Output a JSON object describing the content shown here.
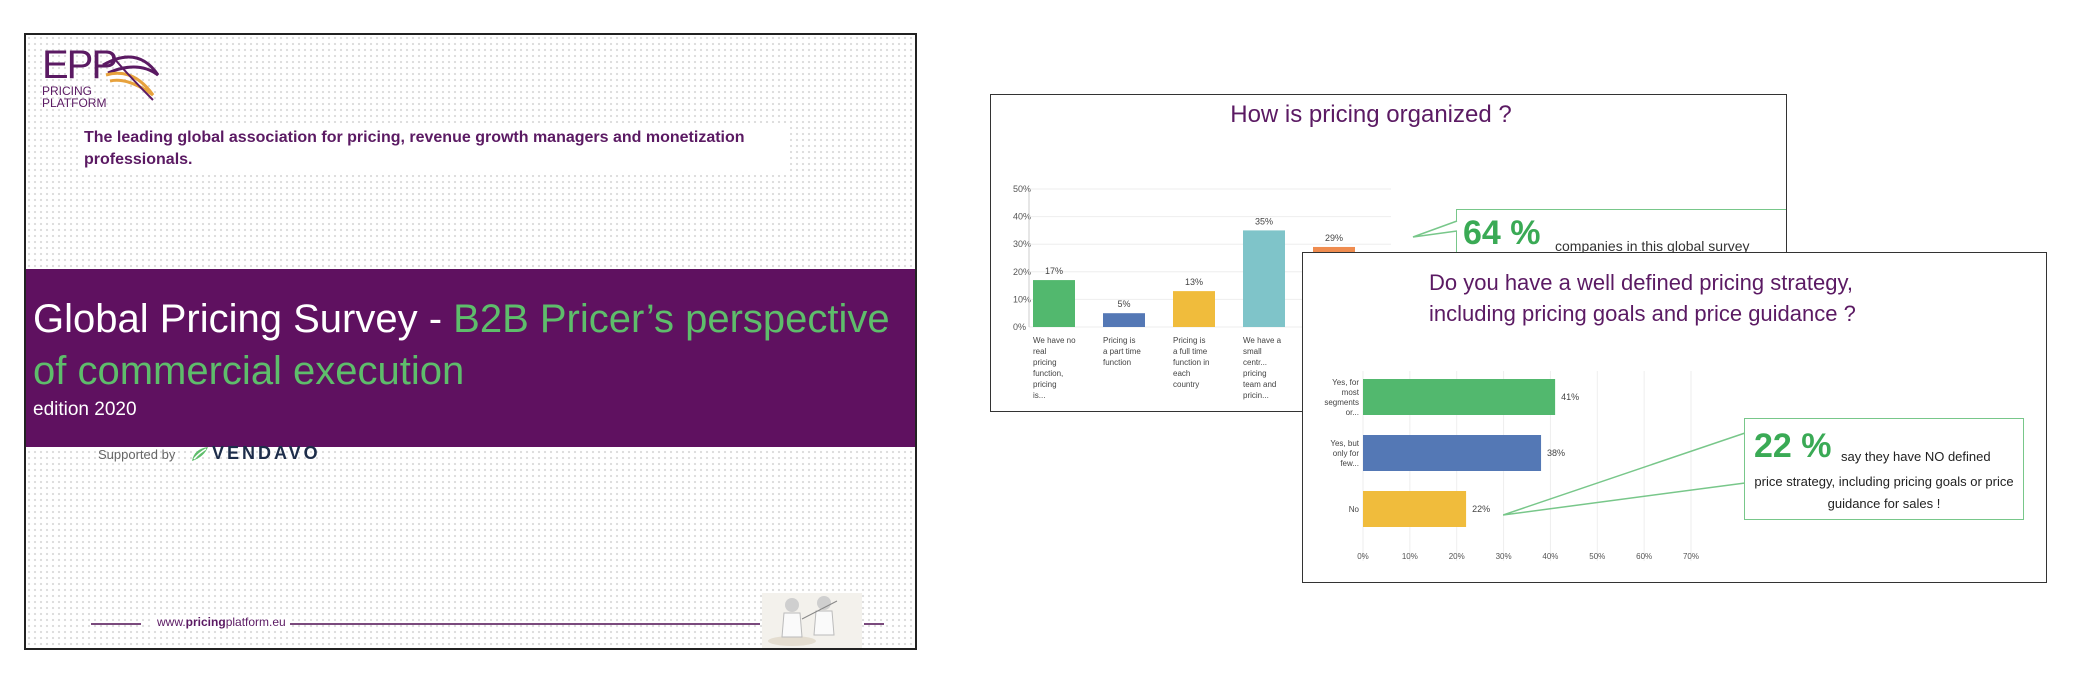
{
  "slide1": {
    "logo_text": "EPP",
    "logo_sub_line1": "PRICING",
    "logo_sub_line2": "PLATFORM",
    "tagline": "The leading global association for pricing, revenue growth managers and monetization professionals.",
    "title_main": "Global Pricing Survey - ",
    "title_accent": "B2B Pricer’s perspective of commercial execution",
    "edition": "edition 2020",
    "supported_by": "Supported by",
    "sponsor": "VENDAVO",
    "url_prefix": "www.",
    "url_bold": "pricing",
    "url_suffix": "platform.eu",
    "colors": {
      "band": "#5f1160",
      "accent": "#5ebd6b",
      "brand": "#5b1a63"
    }
  },
  "slide2": {
    "title": "How is pricing organized ?",
    "callout_big": "64 %",
    "callout_text": "companies in this global survey"
  },
  "slide3": {
    "title_line1": "Do you have a well defined pricing strategy,",
    "title_line2": "including pricing goals and price guidance ?",
    "callout_big": "22 %",
    "callout_text_inline": "say they have NO defined",
    "callout_text_rest": "price strategy, including pricing goals or price guidance for sales !"
  },
  "chart_data": [
    {
      "type": "bar",
      "title": "How is pricing organized ?",
      "categories": [
        "We have no real pricing function, pricing is...",
        "Pricing is a part time function",
        "Pricing is a full time function in each country",
        "We have a small centr... pricing team and pricin...",
        ""
      ],
      "values": [
        17,
        5,
        13,
        35,
        29
      ],
      "value_labels": [
        "17%",
        "5%",
        "13%",
        "35%",
        "29%"
      ],
      "colors": [
        "#52b86e",
        "#5478b5",
        "#f0bc3c",
        "#7fc4c9",
        "#ef8c4f"
      ],
      "yticks": [
        "50%",
        "40%",
        "30%",
        "20%",
        "10%",
        "0%"
      ],
      "ylim": [
        0,
        50
      ]
    },
    {
      "type": "bar",
      "orientation": "horizontal",
      "title": "Do you have a well defined pricing strategy, including pricing goals and price guidance ?",
      "categories": [
        "Yes, for most segments or...",
        "Yes, but only for few...",
        "No"
      ],
      "values": [
        41,
        38,
        22
      ],
      "value_labels": [
        "41%",
        "38%",
        "22%"
      ],
      "colors": [
        "#52b86e",
        "#5478b5",
        "#f0bc3c"
      ],
      "xticks": [
        "0%",
        "10%",
        "20%",
        "30%",
        "40%",
        "50%",
        "60%",
        "70%"
      ],
      "xlim": [
        0,
        70
      ]
    }
  ]
}
